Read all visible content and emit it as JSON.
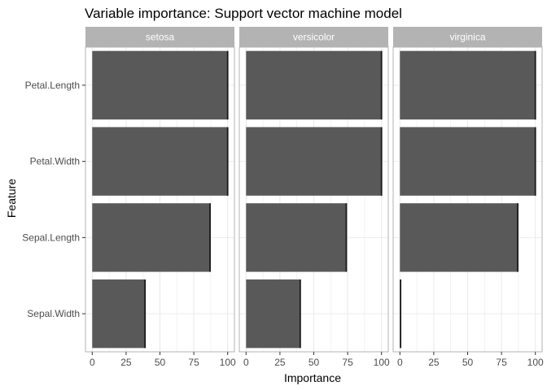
{
  "chart_data": {
    "type": "bar",
    "orientation": "horizontal",
    "title": "Variable importance: Support vector machine model",
    "xlabel": "Importance",
    "ylabel": "Feature",
    "xlim": [
      0,
      100
    ],
    "xticks": [
      0,
      25,
      50,
      75,
      100
    ],
    "categories": [
      "Petal.Length",
      "Petal.Width",
      "Sepal.Length",
      "Sepal.Width"
    ],
    "panels": [
      {
        "name": "setosa",
        "values": [
          100,
          100,
          87,
          39
        ]
      },
      {
        "name": "versicolor",
        "values": [
          100,
          100,
          74,
          40
        ]
      },
      {
        "name": "virginica",
        "values": [
          100,
          100,
          87,
          0.5
        ]
      }
    ],
    "grid": true,
    "bar_color": "#595959",
    "strip_color": "#b3b3b3",
    "grid_color": "#ebebeb",
    "panel_border_color": "#b3b3b3"
  }
}
